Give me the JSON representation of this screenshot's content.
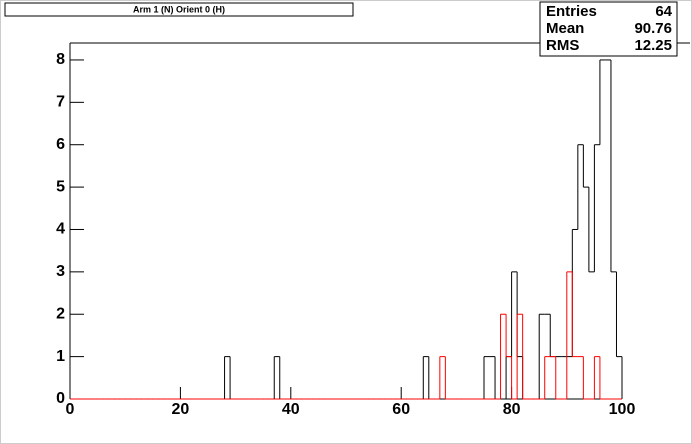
{
  "chart_data": {
    "type": "histogram",
    "title": "Arm 1 (N) Orient 0 (H)",
    "bins": [
      0,
      1,
      2,
      3,
      4,
      5,
      6,
      7,
      8,
      9,
      10,
      11,
      12,
      13,
      14,
      15,
      16,
      17,
      18,
      19,
      20,
      21,
      22,
      23,
      24,
      25,
      26,
      27,
      28,
      29,
      30,
      31,
      32,
      33,
      34,
      35,
      36,
      37,
      38,
      39,
      40,
      41,
      42,
      43,
      44,
      45,
      46,
      47,
      48,
      49,
      50,
      51,
      52,
      53,
      54,
      55,
      56,
      57,
      58,
      59,
      60,
      61,
      62,
      63,
      64,
      65,
      66,
      67,
      68,
      69,
      70,
      71,
      72,
      73,
      74,
      75,
      76,
      77,
      78,
      79,
      80,
      81,
      82,
      83,
      84,
      85,
      86,
      87,
      88,
      89,
      90,
      91,
      92,
      93,
      94,
      95,
      96,
      97,
      98,
      99,
      100
    ],
    "series": [
      {
        "color": "#000000",
        "values": [
          0,
          0,
          0,
          0,
          0,
          0,
          0,
          0,
          0,
          0,
          0,
          0,
          0,
          0,
          0,
          0,
          0,
          0,
          0,
          0,
          0,
          0,
          0,
          0,
          0,
          0,
          0,
          0,
          1,
          0,
          0,
          0,
          0,
          0,
          0,
          0,
          0,
          1,
          0,
          0,
          0,
          0,
          0,
          0,
          0,
          0,
          0,
          0,
          0,
          0,
          0,
          0,
          0,
          0,
          0,
          0,
          0,
          0,
          0,
          0,
          0,
          0,
          0,
          0,
          1,
          0,
          0,
          0,
          0,
          0,
          0,
          0,
          0,
          0,
          0,
          1,
          1,
          0,
          0,
          1,
          3,
          1,
          0,
          0,
          0,
          2,
          2,
          1,
          1,
          1,
          1,
          4,
          6,
          5,
          3,
          6,
          8,
          8,
          3,
          1
        ]
      },
      {
        "color": "#ff0000",
        "values": [
          0,
          0,
          0,
          0,
          0,
          0,
          0,
          0,
          0,
          0,
          0,
          0,
          0,
          0,
          0,
          0,
          0,
          0,
          0,
          0,
          0,
          0,
          0,
          0,
          0,
          0,
          0,
          0,
          0,
          0,
          0,
          0,
          0,
          0,
          0,
          0,
          0,
          0,
          0,
          0,
          0,
          0,
          0,
          0,
          0,
          0,
          0,
          0,
          0,
          0,
          0,
          0,
          0,
          0,
          0,
          0,
          0,
          0,
          0,
          0,
          0,
          0,
          0,
          0,
          0,
          0,
          0,
          1,
          0,
          0,
          0,
          0,
          0,
          0,
          0,
          0,
          0,
          0,
          2,
          1,
          0,
          2,
          0,
          0,
          0,
          0,
          1,
          1,
          0,
          0,
          3,
          1,
          1,
          0,
          0,
          1,
          0,
          0,
          0,
          0
        ]
      }
    ],
    "xlim": [
      0,
      100
    ],
    "xticks": [
      0,
      20,
      40,
      60,
      80,
      100
    ],
    "ylim": [
      0,
      8.4
    ],
    "yticks": [
      0,
      1,
      2,
      3,
      4,
      5,
      6,
      7,
      8
    ],
    "stats": [
      {
        "label": "Entries",
        "value": 64
      },
      {
        "label": "Mean",
        "value": 90.76
      },
      {
        "label": "RMS",
        "value": 12.25
      }
    ]
  }
}
